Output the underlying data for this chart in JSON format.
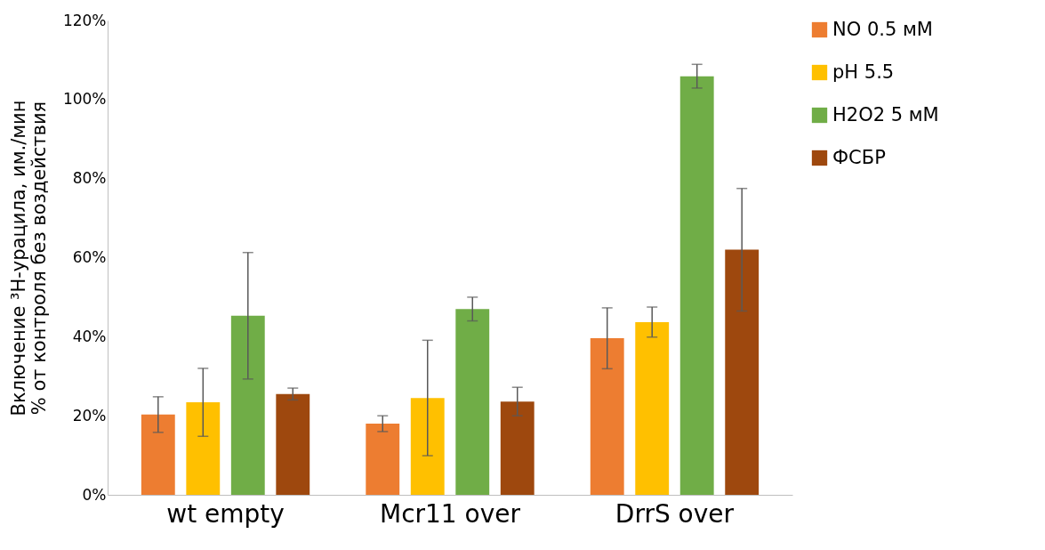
{
  "chart_data": {
    "type": "bar",
    "ylabel": "Включение ³H-урацила, им./мин % от контроля без воздействия",
    "categories": [
      "wt  empty",
      "Mcr11  over",
      "DrrS  over"
    ],
    "series": [
      {
        "name": "NO 0.5 мМ",
        "color": "#ed7d31",
        "values": [
          20.3,
          18,
          39.6
        ],
        "errors": [
          4.5,
          2,
          7.7
        ]
      },
      {
        "name": "pH 5.5",
        "color": "#ffc000",
        "values": [
          23.4,
          24.5,
          43.7
        ],
        "errors": [
          8.6,
          14.6,
          3.8
        ]
      },
      {
        "name": "H2O2 5 мМ",
        "color": "#70ad47",
        "values": [
          45.3,
          47,
          105.9
        ],
        "errors": [
          16,
          3,
          3
        ]
      },
      {
        "name": "ФСБР",
        "color": "#9e480e",
        "values": [
          25.5,
          23.6,
          62
        ],
        "errors": [
          1.5,
          3.6,
          15.5
        ]
      }
    ],
    "ylim": [
      0,
      120
    ],
    "yticks": [
      {
        "value": 0,
        "label": "0%"
      },
      {
        "value": 20,
        "label": "20%"
      },
      {
        "value": 40,
        "label": "40%"
      },
      {
        "value": 60,
        "label": "60%"
      },
      {
        "value": 80,
        "label": "80%"
      },
      {
        "value": 100,
        "label": "100%"
      },
      {
        "value": 120,
        "label": "120%"
      }
    ],
    "grid": false,
    "legend": "right"
  }
}
